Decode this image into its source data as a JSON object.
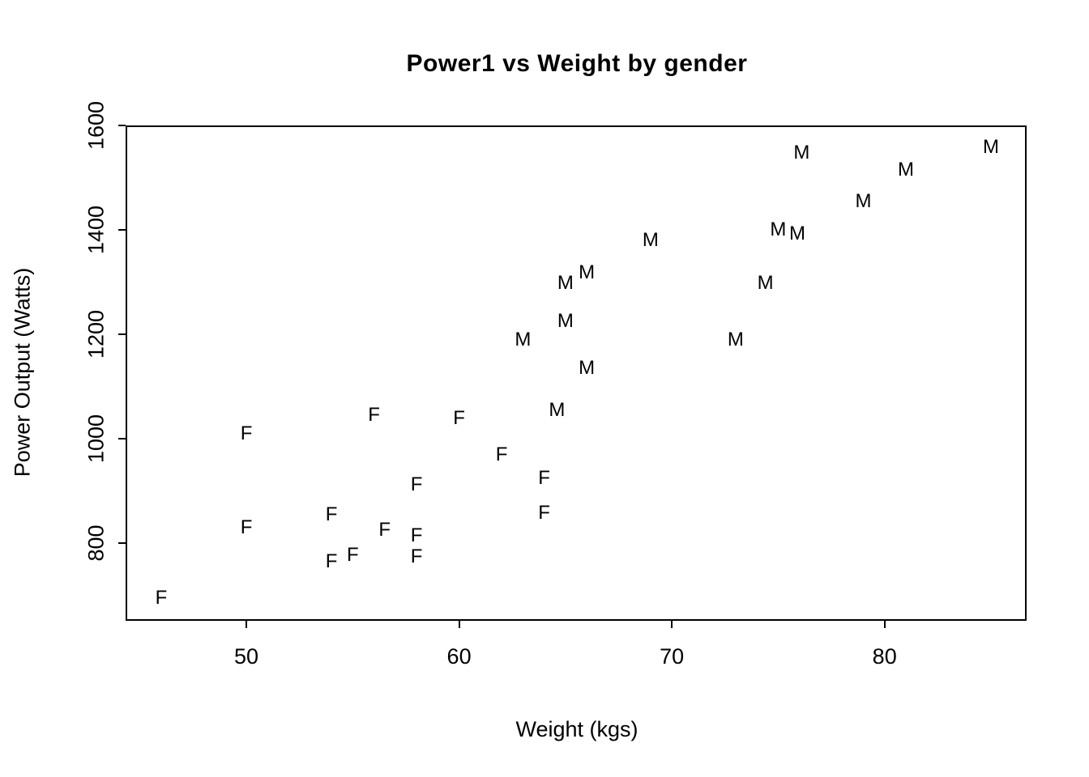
{
  "chart_data": {
    "type": "scatter",
    "title": "Power1 vs Weight by gender",
    "xlabel": "Weight (kgs)",
    "ylabel": "Power Output (Watts)",
    "xlim": [
      44.4,
      86.6
    ],
    "ylim": [
      655,
      1597
    ],
    "x_ticks": [
      "50",
      "60",
      "70",
      "80"
    ],
    "x_tick_values": [
      50,
      60,
      70,
      80
    ],
    "y_ticks": [
      "800",
      "1000",
      "1200",
      "1400",
      "1600"
    ],
    "y_tick_values": [
      800,
      1000,
      1200,
      1400,
      1600
    ],
    "grid": false,
    "legend": "none",
    "marker_style": "text-letters",
    "marker_color": "#000000",
    "series": [
      {
        "name": "F",
        "marker": "F",
        "points": [
          [
            46,
            695
          ],
          [
            50,
            1010
          ],
          [
            50,
            830
          ],
          [
            54,
            855
          ],
          [
            54,
            765
          ],
          [
            55,
            778
          ],
          [
            56,
            1045
          ],
          [
            56.5,
            825
          ],
          [
            58,
            912
          ],
          [
            58,
            815
          ],
          [
            58,
            775
          ],
          [
            60,
            1040
          ],
          [
            62,
            970
          ],
          [
            64,
            925
          ],
          [
            64,
            858
          ]
        ]
      },
      {
        "name": "M",
        "marker": "M",
        "points": [
          [
            63,
            1190
          ],
          [
            64.6,
            1055
          ],
          [
            65,
            1298
          ],
          [
            65,
            1225
          ],
          [
            66,
            1318
          ],
          [
            66,
            1135
          ],
          [
            69,
            1380
          ],
          [
            73,
            1190
          ],
          [
            74.4,
            1298
          ],
          [
            75,
            1400
          ],
          [
            75.9,
            1392
          ],
          [
            76.1,
            1548
          ],
          [
            79,
            1455
          ],
          [
            81,
            1515
          ],
          [
            85,
            1558
          ]
        ]
      }
    ]
  }
}
